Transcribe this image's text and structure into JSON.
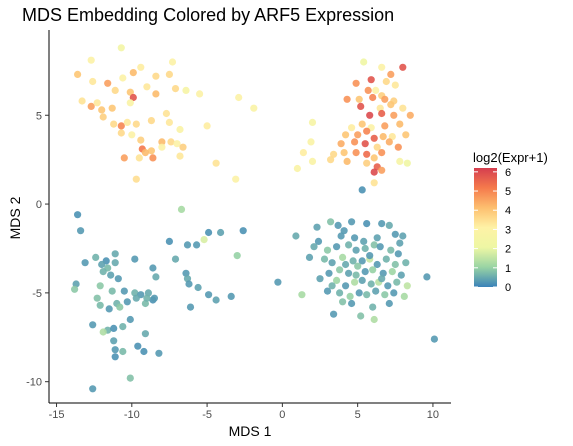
{
  "chart_data": {
    "type": "scatter",
    "title": "MDS Embedding Colored by ARF5 Expression",
    "xlabel": "MDS 1",
    "ylabel": "MDS 2",
    "xlim": [
      -15.5,
      11.2
    ],
    "ylim": [
      -11.2,
      9.8
    ],
    "x_ticks": [
      -15,
      -10,
      -5,
      0,
      5,
      10
    ],
    "y_ticks": [
      -10,
      -5,
      0,
      5
    ],
    "grid": false,
    "legend": {
      "title": "log2(Expr+1)",
      "placement": "right",
      "ticks": [
        0,
        1,
        2,
        3,
        4,
        5,
        6
      ],
      "range": [
        0,
        6.2
      ],
      "colors": [
        "#3a82b8",
        "#99d4a4",
        "#eef7a4",
        "#fef2a6",
        "#fdbf6f",
        "#f57a4c",
        "#d53e4f"
      ]
    },
    "points": [
      [
        -12.7,
        8.1,
        3.0
      ],
      [
        -10.7,
        8.8,
        2.4
      ],
      [
        -13.6,
        7.3,
        4.0
      ],
      [
        -9.4,
        7.7,
        3.2
      ],
      [
        -10.6,
        7.1,
        3.0
      ],
      [
        -9.9,
        7.4,
        4.2
      ],
      [
        -8.4,
        7.2,
        3.6
      ],
      [
        -7.5,
        7.3,
        3.6
      ],
      [
        -7.3,
        8.0,
        3.0
      ],
      [
        -12.6,
        6.9,
        3.3
      ],
      [
        -11.6,
        6.8,
        4.6
      ],
      [
        -11.1,
        6.4,
        3.6
      ],
      [
        -10.1,
        6.3,
        4.0
      ],
      [
        -9.9,
        6.0,
        5.8
      ],
      [
        -9.0,
        6.6,
        3.3
      ],
      [
        -8.4,
        6.2,
        4.2
      ],
      [
        -7.1,
        6.5,
        3.6
      ],
      [
        -6.4,
        6.4,
        2.6
      ],
      [
        -5.5,
        6.2,
        3.0
      ],
      [
        -2.9,
        6.0,
        3.0
      ],
      [
        -1.9,
        5.4,
        2.8
      ],
      [
        -13.3,
        5.8,
        3.4
      ],
      [
        -12.7,
        5.5,
        4.6
      ],
      [
        -12.3,
        5.7,
        3.3
      ],
      [
        -12.0,
        5.3,
        4.0
      ],
      [
        -11.3,
        5.4,
        4.0
      ],
      [
        -10.1,
        5.7,
        2.8
      ],
      [
        -11.9,
        4.9,
        3.8
      ],
      [
        -11.2,
        4.5,
        3.6
      ],
      [
        -10.7,
        4.4,
        5.0
      ],
      [
        -10.3,
        4.6,
        3.3
      ],
      [
        -9.7,
        4.5,
        3.6
      ],
      [
        -8.7,
        4.7,
        3.6
      ],
      [
        -7.7,
        5.1,
        3.4
      ],
      [
        -7.5,
        4.6,
        3.3
      ],
      [
        -6.8,
        4.2,
        2.8
      ],
      [
        -5.0,
        4.4,
        3.2
      ],
      [
        -10.7,
        4.0,
        3.6
      ],
      [
        -10.0,
        3.9,
        3.0
      ],
      [
        -9.4,
        3.6,
        3.8
      ],
      [
        -8.0,
        3.5,
        4.2
      ],
      [
        -7.4,
        3.5,
        3.6
      ],
      [
        -7.0,
        3.4,
        3.0
      ],
      [
        -6.6,
        3.2,
        3.8
      ],
      [
        -9.3,
        3.1,
        5.2
      ],
      [
        -8.7,
        3.0,
        4.0
      ],
      [
        -8.0,
        3.2,
        3.0
      ],
      [
        -9.1,
        2.9,
        4.2
      ],
      [
        -10.5,
        2.6,
        4.6
      ],
      [
        -9.5,
        2.6,
        3.4
      ],
      [
        -8.6,
        2.6,
        4.8
      ],
      [
        -6.8,
        2.7,
        3.3
      ],
      [
        -4.4,
        2.3,
        3.4
      ],
      [
        -9.7,
        1.4,
        3.5
      ],
      [
        -3.1,
        1.4,
        3.0
      ],
      [
        5.4,
        8.0,
        2.2
      ],
      [
        6.6,
        7.7,
        3.0
      ],
      [
        7.2,
        7.3,
        4.6
      ],
      [
        8.0,
        7.7,
        5.8
      ],
      [
        4.9,
        6.8,
        4.8
      ],
      [
        5.9,
        7.0,
        5.8
      ],
      [
        6.9,
        6.9,
        3.6
      ],
      [
        7.5,
        6.7,
        3.3
      ],
      [
        5.7,
        6.4,
        4.8
      ],
      [
        6.2,
        6.4,
        3.0
      ],
      [
        6.6,
        6.1,
        3.8
      ],
      [
        4.3,
        5.9,
        4.8
      ],
      [
        5.1,
        5.9,
        4.0
      ],
      [
        6.0,
        6.0,
        5.0
      ],
      [
        6.8,
        5.9,
        4.6
      ],
      [
        7.4,
        5.8,
        3.8
      ],
      [
        5.2,
        5.5,
        5.8
      ],
      [
        6.5,
        5.4,
        3.3
      ],
      [
        7.2,
        5.6,
        4.0
      ],
      [
        8.0,
        5.4,
        3.4
      ],
      [
        8.5,
        5.0,
        4.4
      ],
      [
        2.0,
        4.6,
        2.6
      ],
      [
        5.8,
        5.0,
        6.0
      ],
      [
        6.6,
        5.1,
        5.6
      ],
      [
        7.4,
        5.0,
        4.6
      ],
      [
        4.6,
        4.3,
        3.2
      ],
      [
        5.3,
        4.5,
        4.0
      ],
      [
        5.9,
        4.3,
        3.0
      ],
      [
        6.8,
        4.4,
        4.6
      ],
      [
        7.8,
        4.5,
        4.2
      ],
      [
        4.2,
        3.9,
        4.0
      ],
      [
        5.0,
        3.9,
        4.6
      ],
      [
        5.6,
        4.1,
        5.0
      ],
      [
        6.1,
        3.7,
        5.6
      ],
      [
        6.7,
        3.8,
        4.2
      ],
      [
        7.3,
        3.8,
        3.3
      ],
      [
        8.2,
        3.9,
        4.0
      ],
      [
        1.9,
        3.5,
        2.8
      ],
      [
        3.9,
        3.4,
        4.4
      ],
      [
        4.8,
        3.5,
        4.8
      ],
      [
        5.5,
        3.4,
        5.8
      ],
      [
        6.3,
        3.2,
        3.6
      ],
      [
        7.1,
        3.5,
        4.4
      ],
      [
        7.7,
        3.2,
        4.8
      ],
      [
        1.4,
        2.9,
        3.2
      ],
      [
        3.4,
        2.8,
        3.6
      ],
      [
        4.1,
        2.9,
        4.0
      ],
      [
        4.9,
        2.9,
        4.8
      ],
      [
        5.6,
        2.8,
        5.4
      ],
      [
        6.1,
        2.6,
        4.0
      ],
      [
        6.6,
        2.9,
        4.8
      ],
      [
        7.8,
        2.4,
        2.6
      ],
      [
        8.3,
        2.3,
        2.2
      ],
      [
        2.0,
        2.4,
        2.8
      ],
      [
        3.2,
        2.5,
        3.6
      ],
      [
        4.3,
        2.4,
        4.2
      ],
      [
        5.6,
        2.3,
        3.8
      ],
      [
        6.3,
        2.1,
        5.6
      ],
      [
        1.0,
        2.0,
        2.8
      ],
      [
        6.1,
        1.8,
        6.0
      ],
      [
        6.6,
        1.9,
        4.6
      ],
      [
        5.3,
        0.8,
        0.2
      ],
      [
        6.1,
        1.2,
        3.4
      ],
      [
        -13.6,
        -0.6,
        0.2
      ],
      [
        -13.4,
        -1.5,
        0.3
      ],
      [
        -6.7,
        -0.3,
        1.2
      ],
      [
        -11.1,
        -2.8,
        0.5
      ],
      [
        -7.5,
        -2.1,
        0.2
      ],
      [
        -9.8,
        -3.1,
        0.3
      ],
      [
        -12.4,
        -3.0,
        0.6
      ],
      [
        -13.1,
        -3.3,
        0.3
      ],
      [
        -11.7,
        -3.2,
        0.2
      ],
      [
        -12.0,
        -3.4,
        0.4
      ],
      [
        -11.1,
        -3.3,
        0.5
      ],
      [
        -11.6,
        -3.6,
        0.7
      ],
      [
        -11.9,
        -3.8,
        0.6
      ],
      [
        -11.4,
        -4.0,
        0.4
      ],
      [
        -10.9,
        -4.2,
        0.3
      ],
      [
        -8.6,
        -3.6,
        0.3
      ],
      [
        -8.4,
        -4.1,
        0.5
      ],
      [
        -13.7,
        -4.5,
        0.4
      ],
      [
        -13.8,
        -4.8,
        0.9
      ],
      [
        -12.1,
        -4.6,
        0.9
      ],
      [
        -11.3,
        -4.9,
        0.7
      ],
      [
        -10.5,
        -4.9,
        0.3
      ],
      [
        -9.8,
        -5.0,
        0.6
      ],
      [
        -9.4,
        -5.1,
        0.3
      ],
      [
        -8.9,
        -5.0,
        0.5
      ],
      [
        -8.6,
        -5.4,
        0.2
      ],
      [
        -9.1,
        -5.6,
        0.7
      ],
      [
        -12.3,
        -5.3,
        0.8
      ],
      [
        -11.0,
        -5.6,
        0.6
      ],
      [
        -10.3,
        -5.5,
        0.3
      ],
      [
        -9.7,
        -5.3,
        0.5
      ],
      [
        -9.0,
        -5.3,
        0.6
      ],
      [
        -8.5,
        -5.3,
        0.3
      ],
      [
        -12.1,
        -5.7,
        0.7
      ],
      [
        -11.5,
        -5.9,
        0.3
      ],
      [
        -10.8,
        -5.8,
        0.9
      ],
      [
        -10.1,
        -6.5,
        0.3
      ],
      [
        -12.6,
        -6.8,
        0.3
      ],
      [
        -11.6,
        -7.1,
        0.6
      ],
      [
        -11.2,
        -7.0,
        0.2
      ],
      [
        -10.6,
        -6.9,
        0.6
      ],
      [
        -11.9,
        -7.2,
        1.3
      ],
      [
        -9.1,
        -7.3,
        0.5
      ],
      [
        -11.2,
        -7.7,
        0.4
      ],
      [
        -11.1,
        -8.2,
        0.3
      ],
      [
        -9.6,
        -8.0,
        0.2
      ],
      [
        -9.2,
        -8.3,
        0.2
      ],
      [
        -10.6,
        -8.3,
        0.7
      ],
      [
        -11.1,
        -8.6,
        0.2
      ],
      [
        -8.2,
        -8.4,
        0.3
      ],
      [
        -10.1,
        -9.8,
        0.8
      ],
      [
        -12.6,
        -10.4,
        0.3
      ],
      [
        -7.1,
        -3.1,
        0.5
      ],
      [
        -6.3,
        -2.3,
        0.3
      ],
      [
        -5.7,
        -2.3,
        0.3
      ],
      [
        -5.2,
        -2.0,
        1.8
      ],
      [
        -4.9,
        -1.6,
        0.2
      ],
      [
        -4.1,
        -1.6,
        0.4
      ],
      [
        -2.6,
        -1.5,
        0.2
      ],
      [
        -3.0,
        -2.9,
        1.0
      ],
      [
        -6.4,
        -3.9,
        0.3
      ],
      [
        -6.3,
        -4.2,
        0.5
      ],
      [
        -6.2,
        -4.5,
        0.3
      ],
      [
        -5.6,
        -4.7,
        0.4
      ],
      [
        -4.9,
        -5.1,
        0.3
      ],
      [
        -4.4,
        -5.4,
        0.4
      ],
      [
        -3.4,
        -5.2,
        0.3
      ],
      [
        -6.1,
        -5.8,
        0.3
      ],
      [
        -0.3,
        -4.4,
        0.3
      ],
      [
        1.3,
        -5.1,
        1.2
      ],
      [
        2.3,
        -1.3,
        0.4
      ],
      [
        3.2,
        -1.0,
        0.8
      ],
      [
        3.7,
        -1.2,
        0.3
      ],
      [
        4.1,
        -1.5,
        0.3
      ],
      [
        4.6,
        -1.0,
        0.3
      ],
      [
        5.6,
        -1.1,
        0.2
      ],
      [
        6.6,
        -1.1,
        0.3
      ],
      [
        7.1,
        -1.2,
        0.5
      ],
      [
        7.5,
        -1.7,
        0.3
      ],
      [
        8.0,
        -1.8,
        0.4
      ],
      [
        4.8,
        -1.9,
        0.3
      ],
      [
        5.4,
        -2.1,
        0.4
      ],
      [
        6.1,
        -2.3,
        0.8
      ],
      [
        2.1,
        -2.4,
        0.5
      ],
      [
        3.0,
        -2.6,
        0.9
      ],
      [
        3.6,
        -2.4,
        0.3
      ],
      [
        4.4,
        -2.3,
        0.6
      ],
      [
        4.9,
        -2.6,
        0.4
      ],
      [
        5.5,
        -2.5,
        0.6
      ],
      [
        6.5,
        -2.4,
        0.3
      ],
      [
        7.2,
        -2.6,
        0.7
      ],
      [
        7.7,
        -2.8,
        0.3
      ],
      [
        2.8,
        -3.1,
        0.7
      ],
      [
        3.3,
        -3.3,
        0.4
      ],
      [
        4.0,
        -3.0,
        1.2
      ],
      [
        4.7,
        -3.2,
        0.6
      ],
      [
        5.3,
        -3.2,
        0.3
      ],
      [
        5.8,
        -3.1,
        1.6
      ],
      [
        6.3,
        -3.4,
        0.3
      ],
      [
        6.9,
        -3.1,
        0.6
      ],
      [
        7.5,
        -3.4,
        0.8
      ],
      [
        8.2,
        -3.3,
        0.6
      ],
      [
        3.1,
        -3.9,
        0.3
      ],
      [
        3.8,
        -3.7,
        0.9
      ],
      [
        4.4,
        -3.9,
        0.4
      ],
      [
        4.9,
        -4.0,
        0.7
      ],
      [
        5.5,
        -3.8,
        0.3
      ],
      [
        6.0,
        -3.7,
        1.0
      ],
      [
        6.7,
        -3.9,
        0.3
      ],
      [
        7.3,
        -3.8,
        1.1
      ],
      [
        7.9,
        -4.0,
        0.4
      ],
      [
        2.5,
        -4.2,
        0.4
      ],
      [
        3.6,
        -4.3,
        1.1
      ],
      [
        4.2,
        -4.6,
        0.3
      ],
      [
        4.8,
        -4.4,
        1.3
      ],
      [
        5.3,
        -4.3,
        0.4
      ],
      [
        5.9,
        -4.5,
        0.6
      ],
      [
        6.4,
        -4.4,
        1.4
      ],
      [
        7.0,
        -4.6,
        0.3
      ],
      [
        7.6,
        -4.4,
        0.7
      ],
      [
        8.3,
        -4.6,
        1.5
      ],
      [
        3.0,
        -4.9,
        0.3
      ],
      [
        3.8,
        -5.0,
        0.6
      ],
      [
        4.5,
        -5.2,
        1.0
      ],
      [
        5.1,
        -5.0,
        0.3
      ],
      [
        5.6,
        -5.1,
        0.7
      ],
      [
        6.2,
        -4.9,
        0.4
      ],
      [
        6.8,
        -5.1,
        0.9
      ],
      [
        7.4,
        -5.0,
        0.3
      ],
      [
        8.1,
        -5.2,
        1.2
      ],
      [
        4.0,
        -5.5,
        0.8
      ],
      [
        4.6,
        -5.6,
        0.3
      ],
      [
        6.0,
        -5.8,
        0.6
      ],
      [
        7.1,
        -5.6,
        0.3
      ],
      [
        3.4,
        -6.2,
        0.3
      ],
      [
        5.2,
        -6.3,
        0.8
      ],
      [
        6.1,
        -6.5,
        1.3
      ],
      [
        9.6,
        -4.1,
        0.3
      ],
      [
        10.1,
        -7.6,
        0.3
      ],
      [
        1.8,
        -3.0,
        0.4
      ],
      [
        2.4,
        -2.1,
        0.3
      ],
      [
        0.9,
        -1.8,
        0.5
      ],
      [
        3.9,
        -1.8,
        0.3
      ],
      [
        6.3,
        -1.9,
        0.4
      ],
      [
        5.8,
        -2.9,
        0.3
      ],
      [
        4.2,
        -3.4,
        0.5
      ],
      [
        6.6,
        -4.2,
        0.5
      ],
      [
        5.0,
        -3.5,
        0.9
      ],
      [
        3.3,
        -4.6,
        0.6
      ],
      [
        7.8,
        -2.2,
        0.4
      ]
    ]
  }
}
